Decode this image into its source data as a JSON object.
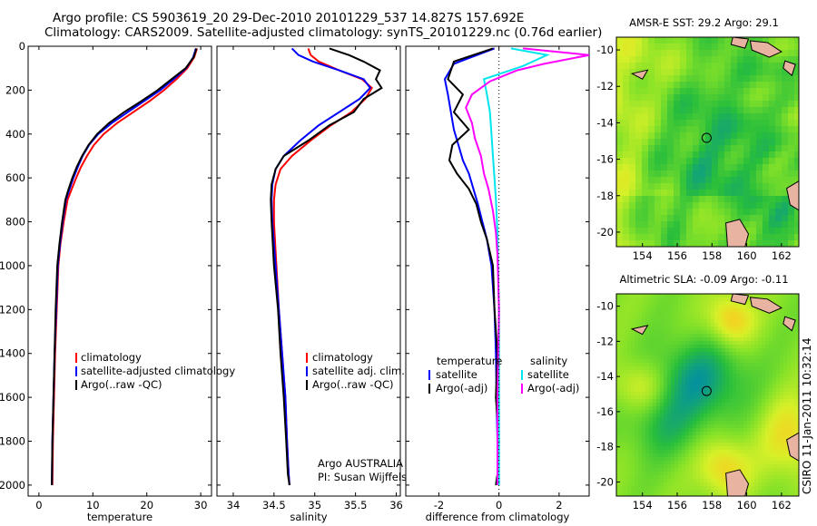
{
  "header": {
    "line1": "Argo profile: CS 5903619_20 29-Dec-2010 20101229_537 14.827S 157.692E",
    "line2": "Climatology: CARS2009. Satellite-adjusted climatology: synTS_20101229.nc (0.76d earlier)"
  },
  "credit": "CSIRO 11-Jan-2011 10:32:14",
  "colors": {
    "clim": "#ff0000",
    "sat": "#0000ff",
    "argo": "#000000",
    "satS": "#00e5ee",
    "argoS": "#ff00ff"
  },
  "chart_data": [
    {
      "id": "temperature",
      "type": "line",
      "xlabel": "temperature",
      "xlim": [
        -2,
        32
      ],
      "ylim": [
        2050,
        0
      ],
      "xticks": [
        0,
        10,
        20,
        30
      ],
      "yticks": [
        0,
        200,
        400,
        600,
        800,
        1000,
        1200,
        1400,
        1600,
        1800,
        2000
      ],
      "legend": [
        "climatology",
        "satellite-adjusted climatology",
        "Argo(..raw -QC)"
      ],
      "series": [
        {
          "name": "climatology",
          "color": "clim",
          "x": [
            29.3,
            28.8,
            27.5,
            25.5,
            23.2,
            20.5,
            17.5,
            14.5,
            12.0,
            10.2,
            8.9,
            7.8,
            6.9,
            6.1,
            5.3,
            4.6,
            4.0,
            3.6,
            3.3,
            3.0,
            2.8,
            2.6,
            2.5
          ],
          "y": [
            10,
            50,
            100,
            150,
            200,
            250,
            300,
            350,
            400,
            450,
            500,
            550,
            600,
            650,
            700,
            800,
            900,
            1000,
            1200,
            1400,
            1600,
            1800,
            2000
          ]
        },
        {
          "name": "satellite-adjusted climatology",
          "color": "sat",
          "x": [
            29.1,
            28.6,
            27.3,
            25.0,
            22.5,
            19.5,
            16.5,
            13.5,
            11.0,
            9.3,
            8.1,
            7.2,
            6.4,
            5.7,
            5.0,
            4.4,
            3.9,
            3.5,
            3.2,
            2.9,
            2.7,
            2.5,
            2.4
          ],
          "y": [
            10,
            50,
            100,
            150,
            200,
            250,
            300,
            350,
            400,
            450,
            500,
            550,
            600,
            650,
            700,
            800,
            900,
            1000,
            1200,
            1400,
            1600,
            1800,
            2000
          ]
        },
        {
          "name": "Argo(..raw -QC)",
          "color": "argo",
          "x": [
            29.2,
            28.7,
            27.2,
            24.6,
            22.0,
            19.0,
            15.8,
            13.0,
            10.8,
            9.2,
            8.0,
            7.0,
            6.2,
            5.5,
            4.9,
            4.3,
            3.8,
            3.4,
            3.1,
            2.9,
            2.7,
            2.5,
            2.4
          ],
          "y": [
            10,
            50,
            100,
            150,
            200,
            250,
            300,
            350,
            400,
            450,
            500,
            550,
            600,
            650,
            700,
            800,
            900,
            1000,
            1200,
            1400,
            1600,
            1800,
            2000
          ]
        }
      ]
    },
    {
      "id": "salinity",
      "type": "line",
      "xlabel": "salinity",
      "xlim": [
        33.8,
        36.05
      ],
      "ylim": [
        2050,
        0
      ],
      "xticks": [
        34,
        34.5,
        35,
        35.5,
        36
      ],
      "legend": [
        "climatology",
        "satellite adj. clim.",
        "Argo(..raw -QC)"
      ],
      "annotation": [
        "Argo AUSTRALIA",
        "PI: Susan Wijffels"
      ],
      "series": [
        {
          "name": "climatology",
          "color": "clim",
          "x": [
            34.92,
            34.95,
            35.05,
            35.3,
            35.58,
            35.7,
            35.62,
            35.45,
            35.2,
            34.95,
            34.72,
            34.58,
            34.52,
            34.5,
            34.5,
            34.53,
            34.56,
            34.6,
            34.64,
            34.66,
            34.68,
            34.69
          ],
          "y": [
            10,
            40,
            70,
            110,
            150,
            190,
            240,
            300,
            360,
            430,
            500,
            560,
            630,
            700,
            800,
            1000,
            1200,
            1400,
            1600,
            1800,
            1950,
            2000
          ]
        },
        {
          "name": "satellite adj. clim.",
          "color": "sat",
          "x": [
            34.72,
            34.8,
            34.98,
            35.3,
            35.6,
            35.68,
            35.55,
            35.3,
            35.05,
            34.82,
            34.62,
            34.52,
            34.48,
            34.47,
            34.48,
            34.52,
            34.56,
            34.6,
            34.64,
            34.66,
            34.68,
            34.69
          ],
          "y": [
            10,
            40,
            70,
            110,
            150,
            190,
            240,
            300,
            360,
            430,
            500,
            560,
            630,
            700,
            800,
            1000,
            1200,
            1400,
            1600,
            1800,
            1950,
            2000
          ]
        },
        {
          "name": "Argo(..raw -QC)",
          "color": "argo",
          "x": [
            35.18,
            35.42,
            35.6,
            35.8,
            35.75,
            35.82,
            35.6,
            35.48,
            35.18,
            34.92,
            34.62,
            34.52,
            34.47,
            34.46,
            34.47,
            34.5,
            34.55,
            34.58,
            34.62,
            34.65,
            34.67,
            34.69
          ],
          "y": [
            10,
            40,
            70,
            110,
            150,
            190,
            240,
            300,
            360,
            430,
            500,
            560,
            630,
            700,
            800,
            1000,
            1200,
            1400,
            1600,
            1800,
            1950,
            2000
          ]
        }
      ]
    },
    {
      "id": "difference",
      "type": "line",
      "xlabel": "difference from climatology",
      "xlim": [
        -3.1,
        3.0
      ],
      "ylim": [
        2050,
        0
      ],
      "xticks": [
        -2,
        0,
        2
      ],
      "legend_left": {
        "heading": "temperature",
        "items": [
          "satellite",
          "Argo(-adj)"
        ]
      },
      "legend_right": {
        "heading": "salinity",
        "items": [
          "satellite",
          "Argo(-adj)"
        ]
      },
      "series": [
        {
          "name": "temperature satellite",
          "color": "sat",
          "x": [
            -0.15,
            -1.5,
            -1.8,
            -1.7,
            -1.6,
            -1.5,
            -1.35,
            -1.2,
            -1.0,
            -0.85,
            -0.7,
            -0.55,
            -0.4,
            -0.25,
            -0.15,
            -0.1,
            -0.08,
            -0.05,
            -0.05,
            -0.06
          ],
          "y": [
            10,
            80,
            150,
            220,
            300,
            380,
            450,
            520,
            580,
            650,
            720,
            800,
            880,
            1000,
            1200,
            1400,
            1600,
            1800,
            1950,
            2000
          ]
        },
        {
          "name": "temperature Argo(-adj)",
          "color": "argo",
          "x": [
            -0.2,
            -1.5,
            -1.7,
            -1.2,
            -1.5,
            -1.0,
            -1.55,
            -1.65,
            -1.4,
            -1.0,
            -0.75,
            -0.6,
            -0.4,
            -0.2,
            -0.15,
            -0.05,
            -0.1,
            0.0,
            -0.05,
            -0.1
          ],
          "y": [
            10,
            70,
            150,
            220,
            300,
            380,
            450,
            520,
            580,
            650,
            720,
            800,
            880,
            1000,
            1200,
            1400,
            1600,
            1800,
            1950,
            2000
          ]
        },
        {
          "name": "salinity satellite",
          "color": "satS",
          "x": [
            0.4,
            1.6,
            0.8,
            -0.5,
            -0.4,
            -0.3,
            -0.25,
            -0.2,
            -0.15,
            -0.1,
            -0.05,
            -0.03,
            0.0,
            0.0,
            0.0
          ],
          "y": [
            10,
            40,
            90,
            150,
            220,
            300,
            400,
            500,
            600,
            700,
            850,
            1000,
            1200,
            1600,
            2000
          ]
        },
        {
          "name": "salinity Argo(-adj)",
          "color": "argoS",
          "x": [
            0.8,
            3.0,
            1.5,
            0.6,
            -0.3,
            -0.9,
            -1.1,
            -0.9,
            -0.8,
            -0.6,
            -0.5,
            -0.35,
            -0.2,
            -0.1,
            -0.05,
            0.0,
            -0.05,
            -0.05
          ],
          "y": [
            10,
            40,
            80,
            110,
            160,
            220,
            280,
            350,
            420,
            500,
            580,
            650,
            750,
            850,
            950,
            1200,
            1600,
            2000
          ]
        }
      ]
    },
    {
      "id": "sst_map",
      "type": "heatmap",
      "title": "AMSR-E SST: 29.2  Argo: 29.1",
      "xlim": [
        152.5,
        163.0
      ],
      "ylim": [
        -20.8,
        -9.3
      ],
      "xticks": [
        154,
        156,
        158,
        160,
        162
      ],
      "yticks": [
        -10,
        -12,
        -14,
        -16,
        -18,
        -20
      ],
      "argo_position": [
        157.692,
        -14.827
      ]
    },
    {
      "id": "sla_map",
      "type": "heatmap",
      "title": "Altimetric SLA: -0.09  Argo: -0.11",
      "xlim": [
        152.5,
        163.0
      ],
      "ylim": [
        -20.8,
        -9.3
      ],
      "xticks": [
        154,
        156,
        158,
        160,
        162
      ],
      "yticks": [
        -10,
        -12,
        -14,
        -16,
        -18,
        -20
      ],
      "argo_position": [
        157.692,
        -14.827
      ]
    }
  ]
}
